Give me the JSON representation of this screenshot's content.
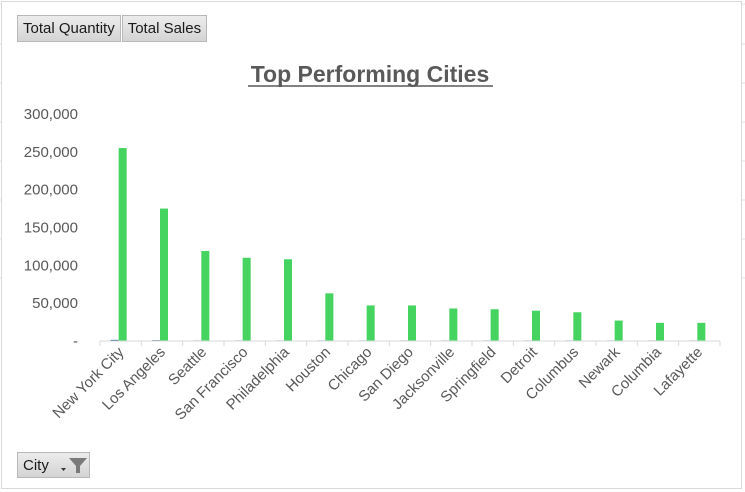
{
  "pivot_buttons": {
    "total_quantity": "Total Quantity",
    "total_sales": "Total Sales",
    "city_filter": "City"
  },
  "icons": [
    "chevron-down-icon",
    "filter-icon"
  ],
  "colors": {
    "sales_bar": "#45d45f",
    "quantity_bar": "#1f5a8a",
    "axis_text": "#595959",
    "gridline": "#d9d9d9"
  },
  "chart_data": {
    "type": "bar",
    "title": "Top Performing Cities",
    "xlabel": "",
    "ylabel": "",
    "ylim": [
      0,
      300000
    ],
    "yticks": [
      0,
      50000,
      100000,
      150000,
      200000,
      250000,
      300000
    ],
    "ytick_labels": [
      "-",
      "50,000",
      "100,000",
      "150,000",
      "200,000",
      "250,000",
      "300,000"
    ],
    "gridlines": false,
    "legend": "none",
    "categories": [
      "New York City",
      "Los Angeles",
      "Seattle",
      "San Francisco",
      "Philadelphia",
      "Houston",
      "Chicago",
      "San Diego",
      "Jacksonville",
      "Springfield",
      "Detroit",
      "Columbus",
      "Newark",
      "Columbia",
      "Lafayette"
    ],
    "series": [
      {
        "values": [
          1500,
          1100,
          300,
          300,
          300,
          200,
          150,
          150,
          150,
          150,
          150,
          120,
          100,
          90,
          90
        ]
      },
      {
        "values": [
          255000,
          175000,
          119000,
          110000,
          108000,
          63000,
          47000,
          47000,
          43000,
          42000,
          40000,
          38000,
          27000,
          24000,
          24000
        ]
      }
    ]
  }
}
